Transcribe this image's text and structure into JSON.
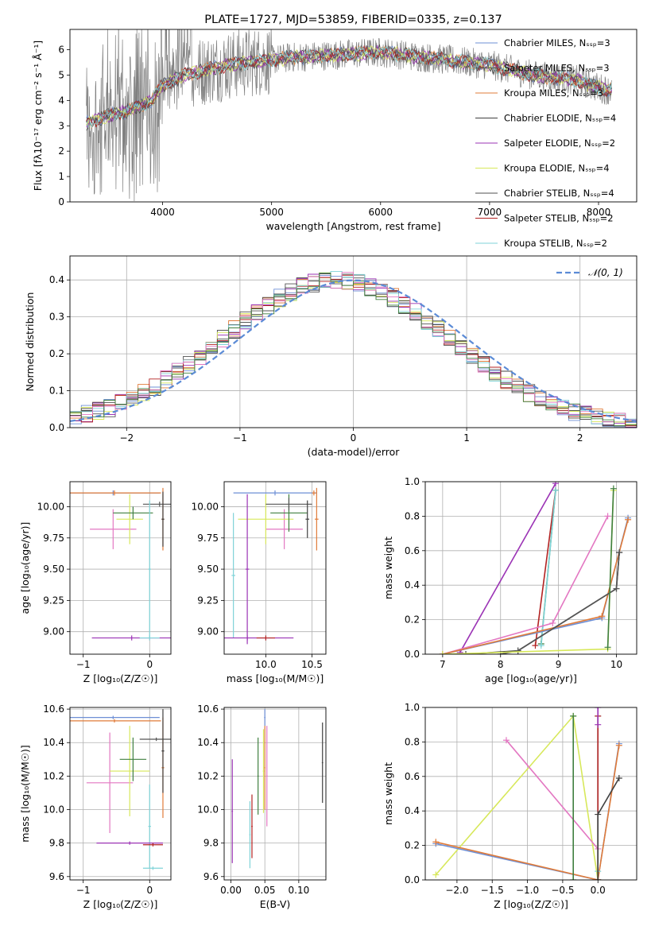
{
  "chart_data": [
    {
      "id": "spectrum",
      "type": "line",
      "title": "PLATE=1727, MJD=53859, FIBERID=0335, z=0.137",
      "xlabel": "wavelength [Angstrom, rest frame]",
      "ylabel": "Flux [fλ10⁻¹⁷ erg cm⁻² s⁻¹ Å⁻¹]",
      "xlim": [
        3150,
        8350
      ],
      "ylim": [
        0,
        6.8
      ],
      "xticks": [
        4000,
        5000,
        6000,
        7000,
        8000
      ],
      "yticks": [
        0,
        1,
        2,
        3,
        4,
        5,
        6
      ],
      "grid": false,
      "legend": "right",
      "series": [
        {
          "name": "Chabrier MILES, Nₛₛₚ=3",
          "color": "#6d8fd6"
        },
        {
          "name": "Salpeter MILES, Nₛₛₚ=3",
          "color": "#555555"
        },
        {
          "name": "Kroupa MILES, Nₛₛₚ=3",
          "color": "#e07b39"
        },
        {
          "name": "Chabrier ELODIE, Nₛₛₚ=4",
          "color": "#3f3f3f"
        },
        {
          "name": "Salpeter ELODIE, Nₛₛₚ=2",
          "color": "#9b33b5"
        },
        {
          "name": "Kroupa ELODIE, Nₛₛₚ=4",
          "color": "#d7e85a"
        },
        {
          "name": "Chabrier STELIB, Nₛₛₚ=4",
          "color": "#505050"
        },
        {
          "name": "Salpeter STELIB, Nₛₛₚ=2",
          "color": "#b22222"
        },
        {
          "name": "Kroupa STELIB, Nₛₛₚ=2",
          "color": "#7fd3d8"
        }
      ],
      "continuum": {
        "x": [
          3300,
          3500,
          3700,
          3900,
          4000,
          4200,
          4400,
          4600,
          4800,
          5000,
          5200,
          5400,
          5600,
          5800,
          6000,
          6200,
          6400,
          6600,
          6800,
          7000,
          7200,
          7400,
          7600,
          7800,
          8000,
          8100
        ],
        "y": [
          3.1,
          3.4,
          3.6,
          4.0,
          4.6,
          5.0,
          5.2,
          5.4,
          5.5,
          5.6,
          5.7,
          5.75,
          5.8,
          5.85,
          5.9,
          5.8,
          5.7,
          5.6,
          5.5,
          5.4,
          5.2,
          5.0,
          4.9,
          4.8,
          4.5,
          4.4
        ]
      }
    },
    {
      "id": "residuals",
      "type": "step",
      "xlabel": "(data-model)/error",
      "ylabel": "Normed distribution",
      "xlim": [
        -2.5,
        2.5
      ],
      "ylim": [
        0,
        0.465
      ],
      "xticks": [
        -2,
        -1,
        0,
        1,
        2
      ],
      "yticks": [
        0.0,
        0.1,
        0.2,
        0.3,
        0.4
      ],
      "grid": true,
      "legend": "top-right",
      "reference": {
        "name": "𝒩(0, 1)",
        "color": "#5b8bd6"
      }
    },
    {
      "id": "age-vs-Z",
      "type": "errorbar",
      "xlabel": "Z [log₁₀(Z/Z☉)]",
      "ylabel": "age  [log₁₀(age/yr)]",
      "xlim": [
        -1.2,
        0.32
      ],
      "ylim": [
        8.82,
        10.2
      ],
      "xticks": [
        -1,
        0
      ],
      "yticks": [
        9.0,
        9.25,
        9.5,
        9.75,
        10.0
      ],
      "grid": true,
      "points": [
        {
          "x": -0.55,
          "y": 10.11,
          "xerr": 0.7,
          "yerr": 0.02,
          "color": "#6d8fd6"
        },
        {
          "x": -0.53,
          "y": 10.11,
          "xerr": 0.7,
          "yerr": 0.02,
          "color": "#e07b39"
        },
        {
          "x": 0.2,
          "y": 9.9,
          "xerr": 0.02,
          "yerr": 0.25,
          "color": "#e07b39"
        },
        {
          "x": -0.55,
          "y": 9.82,
          "xerr": 0.35,
          "yerr": 0.16,
          "color": "#e377c2"
        },
        {
          "x": -0.3,
          "y": 9.9,
          "xerr": 0.2,
          "yerr": 0.2,
          "color": "#d7e85a"
        },
        {
          "x": -0.25,
          "y": 9.95,
          "xerr": 0.3,
          "yerr": 0.05,
          "color": "#3f7f3f"
        },
        {
          "x": 0.15,
          "y": 10.02,
          "xerr": 0.25,
          "yerr": 0.02,
          "color": "#555555"
        },
        {
          "x": 0.2,
          "y": 9.9,
          "xerr": 0.02,
          "yerr": 0.22,
          "color": "#3f3f3f"
        },
        {
          "x": 0.0,
          "y": 9.5,
          "xerr": 0.02,
          "yerr": 0.55,
          "color": "#7fd3d8"
        },
        {
          "x": -0.27,
          "y": 8.95,
          "xerr": 0.6,
          "yerr": 0.02,
          "color": "#9b33b5"
        },
        {
          "x": 0.0,
          "y": 8.95,
          "xerr": 0.15,
          "yerr": 0.02,
          "color": "#7fd3d8"
        }
      ]
    },
    {
      "id": "age-vs-mass",
      "type": "errorbar",
      "xlabel": "mass [log₁₀(M/M☉)]",
      "ylabel": "",
      "xlim": [
        9.55,
        10.65
      ],
      "ylim": [
        8.82,
        10.2
      ],
      "xticks": [
        10.0,
        10.5
      ],
      "yticks": [
        9.0,
        9.25,
        9.5,
        9.75,
        10.0
      ],
      "grid": true,
      "points": [
        {
          "x": 10.1,
          "y": 10.11,
          "xerr": 0.45,
          "yerr": 0.02,
          "color": "#6d8fd6"
        },
        {
          "x": 10.55,
          "y": 9.9,
          "xerr": 0.02,
          "yerr": 0.25,
          "color": "#e07b39"
        },
        {
          "x": 10.52,
          "y": 10.11,
          "xerr": 0.02,
          "yerr": 0.02,
          "color": "#e07b39"
        },
        {
          "x": 10.2,
          "y": 9.82,
          "xerr": 0.2,
          "yerr": 0.16,
          "color": "#e377c2"
        },
        {
          "x": 10.0,
          "y": 9.9,
          "xerr": 0.3,
          "yerr": 0.2,
          "color": "#d7e85a"
        },
        {
          "x": 10.25,
          "y": 9.95,
          "xerr": 0.2,
          "yerr": 0.15,
          "color": "#3f7f3f"
        },
        {
          "x": 10.25,
          "y": 10.02,
          "xerr": 0.25,
          "yerr": 0.05,
          "color": "#555555"
        },
        {
          "x": 10.45,
          "y": 9.9,
          "xerr": 0.02,
          "yerr": 0.15,
          "color": "#3f3f3f"
        },
        {
          "x": 9.65,
          "y": 9.45,
          "xerr": 0.02,
          "yerr": 0.5,
          "color": "#7fd3d8"
        },
        {
          "x": 9.8,
          "y": 9.5,
          "xerr": 0.02,
          "yerr": 0.6,
          "color": "#9b33b5"
        },
        {
          "x": 9.8,
          "y": 8.95,
          "xerr": 0.5,
          "yerr": 0.02,
          "color": "#9b33b5"
        },
        {
          "x": 10.0,
          "y": 8.95,
          "xerr": 0.1,
          "yerr": 0.02,
          "color": "#b22222"
        }
      ]
    },
    {
      "id": "weight-vs-age",
      "type": "line",
      "xlabel": "age  [log₁₀(age/yr)]",
      "ylabel": "mass weight",
      "xlim": [
        6.7,
        10.35
      ],
      "ylim": [
        0,
        1.0
      ],
      "xticks": [
        7,
        8,
        9,
        10
      ],
      "yticks": [
        0.0,
        0.2,
        0.4,
        0.6,
        0.8,
        1.0
      ],
      "grid": true,
      "series": [
        {
          "color": "#9b33b5",
          "x": [
            7.3,
            8.95
          ],
          "y": [
            0.01,
            0.99
          ]
        },
        {
          "color": "#b22222",
          "x": [
            8.6,
            8.95
          ],
          "y": [
            0.05,
            0.95
          ]
        },
        {
          "color": "#3f7f3f",
          "x": [
            8.7,
            8.95
          ],
          "y": [
            0.06,
            0.95
          ]
        },
        {
          "color": "#7fd3d8",
          "x": [
            8.7,
            8.95
          ],
          "y": [
            0.05,
            0.95
          ]
        },
        {
          "color": "#e377c2",
          "x": [
            7.0,
            8.9,
            9.85
          ],
          "y": [
            0.0,
            0.18,
            0.8
          ]
        },
        {
          "color": "#6d8fd6",
          "x": [
            7.0,
            9.75,
            10.2
          ],
          "y": [
            0.0,
            0.21,
            0.79
          ]
        },
        {
          "color": "#e07b39",
          "x": [
            7.0,
            9.75,
            10.2
          ],
          "y": [
            0.0,
            0.22,
            0.78
          ]
        },
        {
          "color": "#3f3f3f",
          "x": [
            7.4,
            8.3,
            10.0,
            10.05
          ],
          "y": [
            0.0,
            0.02,
            0.38,
            0.59
          ]
        },
        {
          "color": "#555555",
          "x": [
            8.0,
            8.3,
            10.0,
            10.05
          ],
          "y": [
            0.0,
            0.02,
            0.38,
            0.59
          ]
        },
        {
          "color": "#d7e85a",
          "x": [
            7.0,
            9.85,
            9.95
          ],
          "y": [
            0.0,
            0.03,
            0.95
          ]
        },
        {
          "color": "#3f7f3f",
          "x": [
            9.85,
            9.95
          ],
          "y": [
            0.04,
            0.96
          ]
        }
      ]
    },
    {
      "id": "mass-vs-Z",
      "type": "errorbar",
      "xlabel": "Z [log₁₀(Z/Z☉)]",
      "ylabel": "mass [log₁₀(M/M☉)]",
      "xlim": [
        -1.2,
        0.32
      ],
      "ylim": [
        9.58,
        10.61
      ],
      "xticks": [
        -1,
        0
      ],
      "yticks": [
        9.6,
        9.8,
        10.0,
        10.2,
        10.4,
        10.6
      ],
      "grid": true,
      "points": [
        {
          "x": -0.55,
          "y": 10.55,
          "xerr": 0.7,
          "yerr": 0.01,
          "color": "#6d8fd6"
        },
        {
          "x": -0.53,
          "y": 10.53,
          "xerr": 0.7,
          "yerr": 0.01,
          "color": "#e07b39"
        },
        {
          "x": 0.2,
          "y": 10.25,
          "xerr": 0.02,
          "yerr": 0.3,
          "color": "#e07b39"
        },
        {
          "x": -0.6,
          "y": 10.16,
          "xerr": 0.35,
          "yerr": 0.3,
          "color": "#e377c2"
        },
        {
          "x": -0.3,
          "y": 10.23,
          "xerr": 0.3,
          "yerr": 0.27,
          "color": "#d7e85a"
        },
        {
          "x": -0.25,
          "y": 10.3,
          "xerr": 0.2,
          "yerr": 0.13,
          "color": "#3f7f3f"
        },
        {
          "x": 0.1,
          "y": 10.42,
          "xerr": 0.25,
          "yerr": 0.01,
          "color": "#555555"
        },
        {
          "x": 0.2,
          "y": 10.35,
          "xerr": 0.02,
          "yerr": 0.25,
          "color": "#3f3f3f"
        },
        {
          "x": 0.0,
          "y": 9.9,
          "xerr": 0.02,
          "yerr": 0.25,
          "color": "#7fd3d8"
        },
        {
          "x": 0.05,
          "y": 9.65,
          "xerr": 0.15,
          "yerr": 0.01,
          "color": "#7fd3d8"
        },
        {
          "x": -0.3,
          "y": 9.8,
          "xerr": 0.5,
          "yerr": 0.01,
          "color": "#9b33b5"
        },
        {
          "x": 0.05,
          "y": 9.79,
          "xerr": 0.15,
          "yerr": 0.01,
          "color": "#b22222"
        }
      ]
    },
    {
      "id": "mass-vs-EBV",
      "type": "errorbar",
      "xlabel": "E(B-V)",
      "ylabel": "",
      "xlim": [
        -0.01,
        0.14
      ],
      "ylim": [
        9.58,
        10.61
      ],
      "xticks": [
        0.0,
        0.05,
        0.1
      ],
      "ytickss": [],
      "yticks": [
        9.6,
        9.8,
        10.0,
        10.2,
        10.4,
        10.6
      ],
      "grid": true,
      "points": [
        {
          "x": 0.05,
          "y": 10.55,
          "xerr": 0.001,
          "yerr": 0.05,
          "color": "#6d8fd6"
        },
        {
          "x": 0.05,
          "y": 10.25,
          "xerr": 0.001,
          "yerr": 0.25,
          "color": "#e07b39"
        },
        {
          "x": 0.053,
          "y": 10.2,
          "xerr": 0.001,
          "yerr": 0.3,
          "color": "#e377c2"
        },
        {
          "x": 0.048,
          "y": 10.23,
          "xerr": 0.001,
          "yerr": 0.25,
          "color": "#d7e85a"
        },
        {
          "x": 0.04,
          "y": 10.2,
          "xerr": 0.001,
          "yerr": 0.23,
          "color": "#3f7f3f"
        },
        {
          "x": 0.135,
          "y": 10.28,
          "xerr": 0.001,
          "yerr": 0.24,
          "color": "#3f3f3f"
        },
        {
          "x": 0.028,
          "y": 9.85,
          "xerr": 0.001,
          "yerr": 0.2,
          "color": "#7fd3d8"
        },
        {
          "x": 0.002,
          "y": 9.99,
          "xerr": 0.001,
          "yerr": 0.31,
          "color": "#9b33b5"
        },
        {
          "x": 0.031,
          "y": 9.9,
          "xerr": 0.001,
          "yerr": 0.19,
          "color": "#b22222"
        }
      ]
    },
    {
      "id": "weight-vs-Z",
      "type": "line",
      "xlabel": "Z [log₁₀(Z/Z☉)]",
      "ylabel": "mass weight",
      "xlim": [
        -2.45,
        0.55
      ],
      "ylim": [
        0,
        1.0
      ],
      "xticks": [
        -2.0,
        -1.5,
        -1.0,
        -0.5,
        0.0
      ],
      "yticks": [
        0.0,
        0.2,
        0.4,
        0.6,
        0.8,
        1.0
      ],
      "grid": true,
      "series": [
        {
          "color": "#d7e85a",
          "x": [
            -2.3,
            -0.35,
            0.0
          ],
          "y": [
            0.03,
            0.95,
            0.0
          ]
        },
        {
          "color": "#6d8fd6",
          "x": [
            -2.3,
            0.0,
            0.3
          ],
          "y": [
            0.21,
            0.0,
            0.79
          ]
        },
        {
          "color": "#e07b39",
          "x": [
            -2.3,
            0.0,
            0.3
          ],
          "y": [
            0.22,
            0.0,
            0.78
          ]
        },
        {
          "color": "#e377c2",
          "x": [
            -1.3,
            0.0
          ],
          "y": [
            0.81,
            0.18
          ]
        },
        {
          "color": "#3f7f3f",
          "x": [
            -0.35,
            -0.35
          ],
          "y": [
            0.0,
            0.95
          ]
        },
        {
          "color": "#7fd3d8",
          "x": [
            0.0,
            0.0
          ],
          "y": [
            0.05,
            0.95
          ]
        },
        {
          "color": "#b22222",
          "x": [
            0.0,
            0.0
          ],
          "y": [
            0.0,
            0.95
          ]
        },
        {
          "color": "#9b33b5",
          "x": [
            0.0,
            0.0
          ],
          "y": [
            0.9,
            1.0
          ]
        },
        {
          "color": "#3f3f3f",
          "x": [
            0.0,
            0.0,
            0.3
          ],
          "y": [
            0.0,
            0.38,
            0.59
          ]
        }
      ]
    }
  ]
}
